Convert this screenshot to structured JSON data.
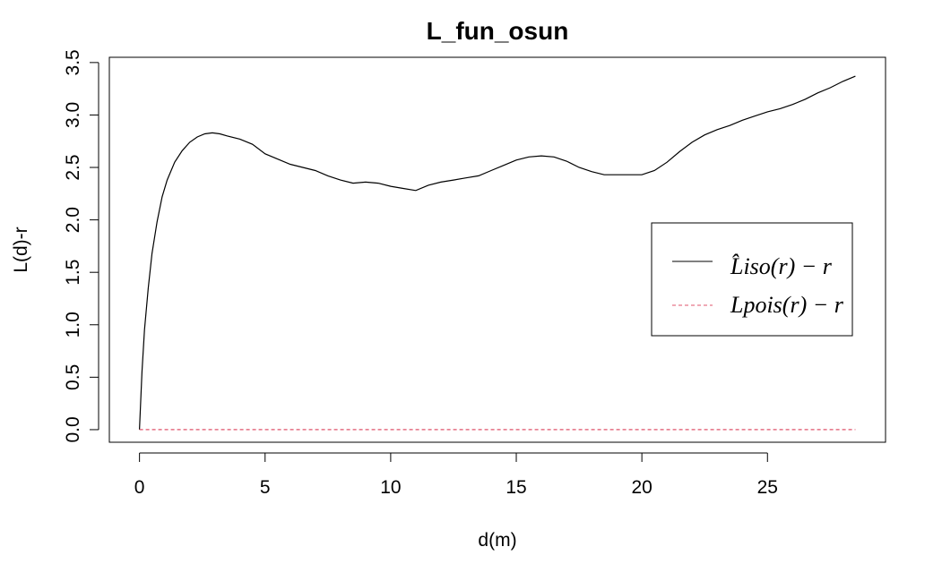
{
  "chart_data": {
    "type": "line",
    "title": "L_fun_osun",
    "xlabel": "d(m)",
    "ylabel": "L(d)-r",
    "xlim": [
      -1.2,
      29.7
    ],
    "ylim": [
      -0.12,
      3.55
    ],
    "xticks": [
      0,
      5,
      10,
      15,
      20,
      25
    ],
    "xtick_labels": [
      "0",
      "5",
      "10",
      "15",
      "20",
      "25"
    ],
    "yticks": [
      0.0,
      0.5,
      1.0,
      1.5,
      2.0,
      2.5,
      3.0,
      3.5
    ],
    "ytick_labels": [
      "0.0",
      "0.5",
      "1.0",
      "1.5",
      "2.0",
      "2.5",
      "3.0",
      "3.5"
    ],
    "grid": false,
    "legend_position": "right",
    "series": [
      {
        "name": "L̂iso(r) − r",
        "color": "#000000",
        "style": "solid",
        "x": [
          0,
          0.1,
          0.2,
          0.35,
          0.5,
          0.7,
          0.9,
          1.1,
          1.4,
          1.7,
          2.0,
          2.3,
          2.6,
          2.9,
          3.2,
          3.5,
          4.0,
          4.5,
          5.0,
          5.5,
          6.0,
          6.5,
          7.0,
          7.5,
          8.0,
          8.5,
          9.0,
          9.5,
          10.0,
          10.5,
          11.0,
          11.5,
          12.0,
          12.5,
          13.0,
          13.5,
          14.0,
          14.5,
          15.0,
          15.5,
          16.0,
          16.5,
          17.0,
          17.5,
          18.0,
          18.5,
          19.0,
          19.5,
          20.0,
          20.5,
          21.0,
          21.5,
          22.0,
          22.5,
          23.0,
          23.5,
          24.0,
          24.5,
          25.0,
          25.5,
          26.0,
          26.5,
          27.0,
          27.5,
          28.0,
          28.5
        ],
        "y": [
          0.0,
          0.55,
          0.95,
          1.35,
          1.68,
          1.98,
          2.22,
          2.38,
          2.55,
          2.66,
          2.74,
          2.79,
          2.82,
          2.83,
          2.82,
          2.8,
          2.77,
          2.72,
          2.63,
          2.58,
          2.53,
          2.5,
          2.47,
          2.42,
          2.38,
          2.35,
          2.36,
          2.35,
          2.32,
          2.3,
          2.28,
          2.33,
          2.36,
          2.38,
          2.4,
          2.42,
          2.47,
          2.52,
          2.57,
          2.6,
          2.61,
          2.6,
          2.56,
          2.5,
          2.46,
          2.43,
          2.43,
          2.43,
          2.43,
          2.47,
          2.55,
          2.65,
          2.74,
          2.81,
          2.86,
          2.9,
          2.95,
          2.99,
          3.03,
          3.06,
          3.1,
          3.15,
          3.21,
          3.26,
          3.32,
          3.37
        ]
      },
      {
        "name": "Lpois(r) − r",
        "color": "#df536b",
        "style": "dashed",
        "x": [
          0,
          28.5
        ],
        "y": [
          0,
          0
        ]
      }
    ]
  }
}
